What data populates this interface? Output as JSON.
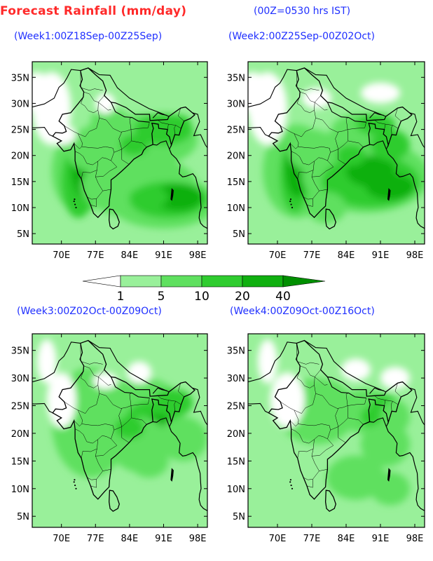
{
  "header": {
    "title": "Forecast Rainfall (mm/day)",
    "time_note": "(00Z=0530 hrs IST)"
  },
  "colors": {
    "c1": "#99f09a",
    "c5": "#5fe05f",
    "c10": "#2fcc2f",
    "c20": "#10b010",
    "c40": "#008f00",
    "title_red": "#ff2a2a",
    "label_blue": "#2030ff"
  },
  "axes": {
    "x_ticks": [
      "70E",
      "77E",
      "84E",
      "91E",
      "98E"
    ],
    "y_ticks": [
      "35N",
      "30N",
      "25N",
      "20N",
      "15N",
      "10N",
      "5N"
    ]
  },
  "legend": {
    "labels": [
      "1",
      "5",
      "10",
      "20",
      "40"
    ]
  },
  "panels": [
    {
      "title": "(Week1:00Z18Sep-00Z25Sep)",
      "intensity": 1
    },
    {
      "title": "(Week2:00Z25Sep-00Z02Oct)",
      "intensity": 2
    },
    {
      "title": "(Week3:00Z02Oct-00Z09Oct)",
      "intensity": 3
    },
    {
      "title": "(Week4:00Z09Oct-00Z16Oct)",
      "intensity": 4
    }
  ]
}
